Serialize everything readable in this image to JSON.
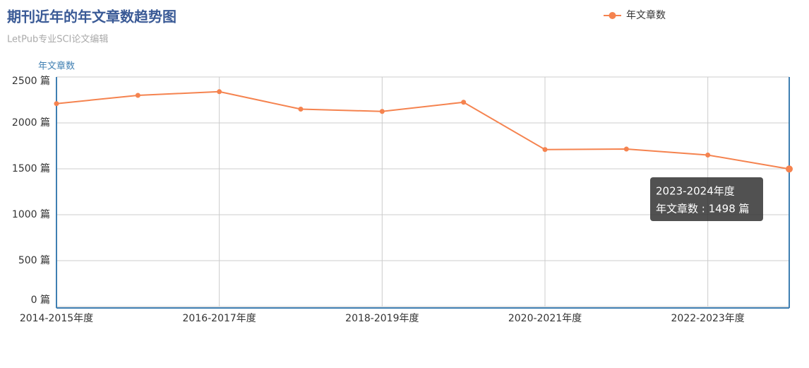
{
  "chart_data": {
    "type": "line",
    "title": "期刊近年的年文章数趋势图",
    "subtitle": "LetPub专业SCI论文编辑",
    "y_axis_label": "年文章数",
    "categories": [
      "2014-2015年度",
      null,
      "2016-2017年度",
      null,
      "2018-2019年度",
      null,
      "2020-2021年度",
      null,
      "2022-2023年度",
      null
    ],
    "series": [
      {
        "name": "年文章数",
        "color": "#f5834f",
        "values": [
          2210,
          2300,
          2340,
          2150,
          2125,
          2225,
          1710,
          1715,
          1650,
          1498
        ]
      }
    ],
    "ylim": [
      0,
      2500
    ],
    "yticks": [
      {
        "value": 0,
        "label": "0 篇"
      },
      {
        "value": 500,
        "label": "500 篇"
      },
      {
        "value": 1000,
        "label": "1000 篇"
      },
      {
        "value": 1500,
        "label": "1500 篇"
      },
      {
        "value": 2000,
        "label": "2000 篇"
      },
      {
        "value": 2500,
        "label": "2500 篇"
      }
    ],
    "grid": true,
    "legend": "top-right",
    "tooltip": {
      "title": "2023-2024年度",
      "label": "年文章数 : 1498 篇"
    }
  }
}
